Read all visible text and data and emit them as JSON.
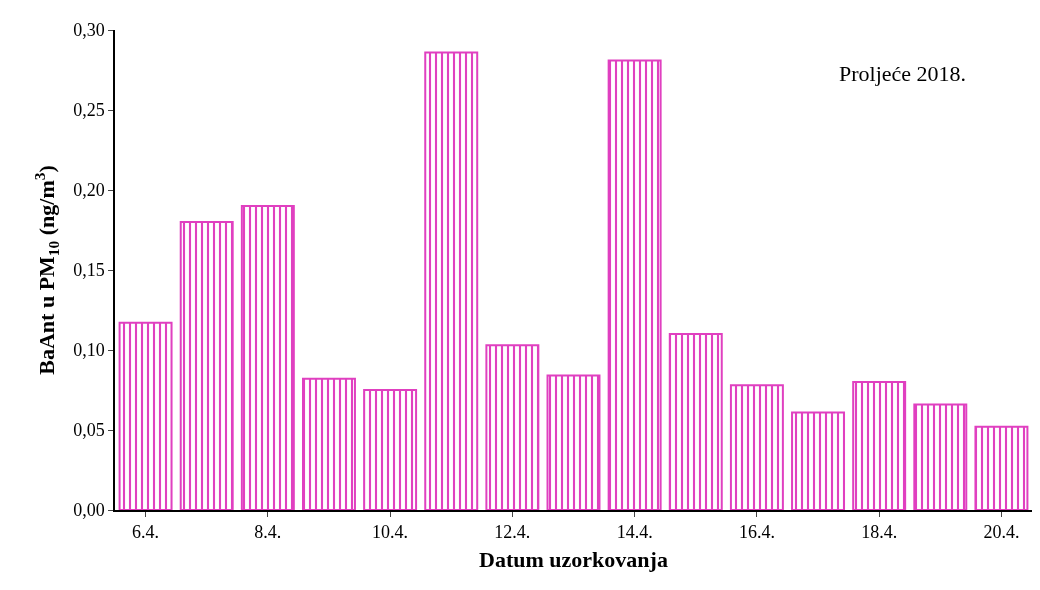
{
  "chart_data": {
    "type": "bar",
    "xlabel": "Datum uzorkovanja",
    "ylabel": "BaAnt u PM$_{10}$ (ng/m$^{3}$)",
    "annotations": [
      "Proljeće 2018."
    ],
    "categories": [
      "6.4.",
      null,
      "8.4.",
      null,
      "10.4.",
      null,
      "12.4.",
      null,
      "14.4.",
      null,
      "16.4.",
      null,
      "18.4.",
      null,
      "20.4."
    ],
    "values": [
      0.117,
      0.18,
      0.19,
      0.082,
      0.075,
      0.286,
      0.103,
      0.084,
      0.281,
      0.11,
      0.078,
      0.061,
      0.08,
      0.066,
      0.052
    ],
    "color": "#e040c0",
    "ylim": [
      0,
      0.3
    ],
    "yticks": [
      {
        "value": 0,
        "label": "0,00"
      },
      {
        "value": 0.05,
        "label": "0,05"
      },
      {
        "value": 0.1,
        "label": "0,10"
      },
      {
        "value": 0.15,
        "label": "0,15"
      },
      {
        "value": 0.2,
        "label": "0,20"
      },
      {
        "value": 0.25,
        "label": "0,25"
      },
      {
        "value": 0.3,
        "label": "0,30"
      }
    ],
    "grid": false,
    "legend": false
  }
}
